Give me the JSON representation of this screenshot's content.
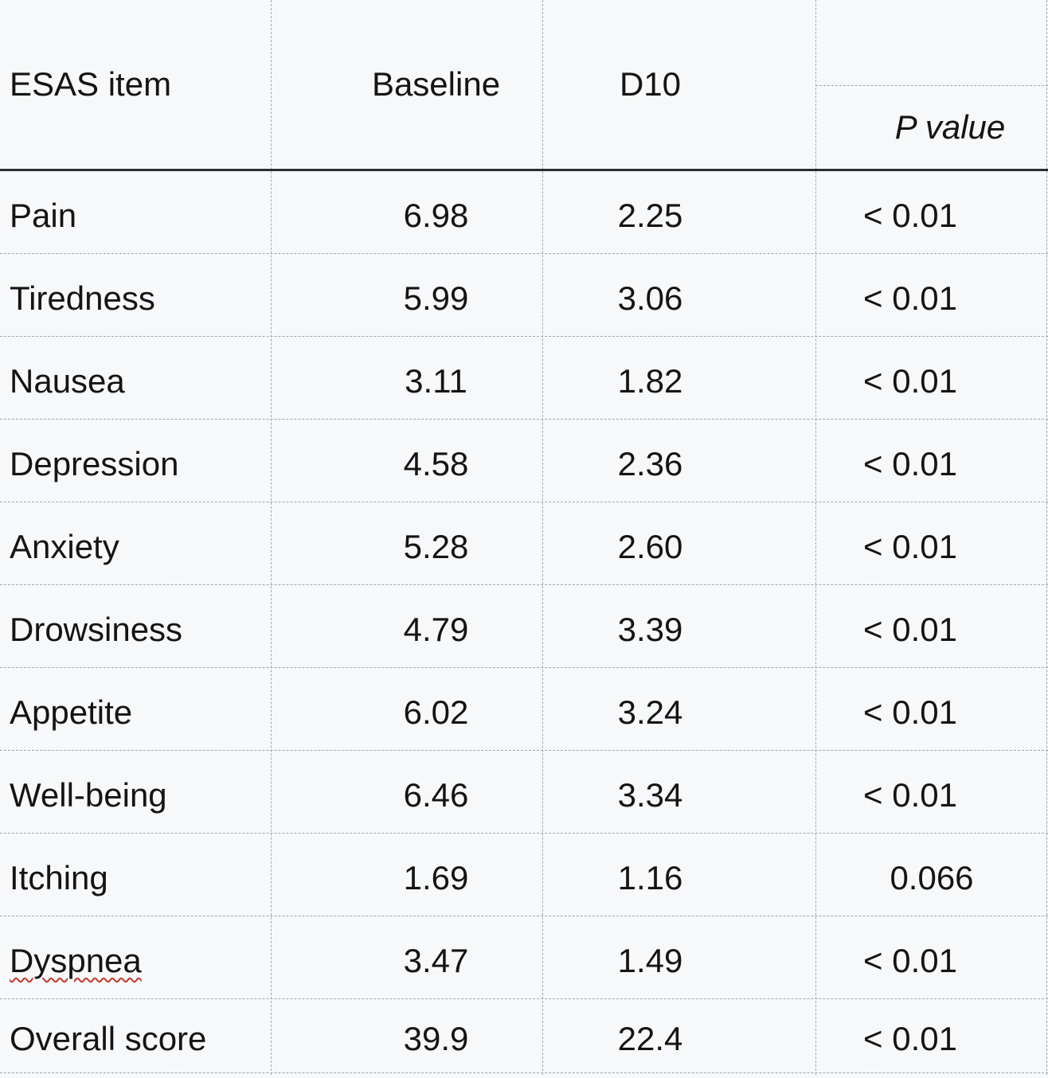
{
  "colors": {
    "background": "#f7f8fa",
    "gridline": "#a2a6ab",
    "header_rule": "#2c2d2f",
    "text": "#141414",
    "spellcheck_squiggle": "#c0392b"
  },
  "table": {
    "columns": [
      "ESAS item",
      "Baseline",
      "D10",
      "P value"
    ],
    "rows": [
      {
        "item": "Pain",
        "baseline": "6.98",
        "d10": "2.25",
        "p": "< 0.01"
      },
      {
        "item": "Tiredness",
        "baseline": "5.99",
        "d10": "3.06",
        "p": "< 0.01"
      },
      {
        "item": "Nausea",
        "baseline": "3.11",
        "d10": "1.82",
        "p": "< 0.01"
      },
      {
        "item": "Depression",
        "baseline": "4.58",
        "d10": "2.36",
        "p": "< 0.01"
      },
      {
        "item": "Anxiety",
        "baseline": "5.28",
        "d10": "2.60",
        "p": "< 0.01"
      },
      {
        "item": "Drowsiness",
        "baseline": "4.79",
        "d10": "3.39",
        "p": "< 0.01"
      },
      {
        "item": "Appetite",
        "baseline": "6.02",
        "d10": "3.24",
        "p": "< 0.01"
      },
      {
        "item": "Well-being",
        "baseline": "6.46",
        "d10": "3.34",
        "p": "< 0.01"
      },
      {
        "item": "Itching",
        "baseline": "1.69",
        "d10": "1.16",
        "p": "0.066"
      },
      {
        "item": "Dyspnea",
        "baseline": "3.47",
        "d10": "1.49",
        "p": "< 0.01",
        "spellcheck_underline": true
      },
      {
        "item": "Overall score",
        "baseline": "39.9",
        "d10": "22.4",
        "p": "< 0.01"
      }
    ]
  },
  "chart_data": {
    "type": "table",
    "title": "",
    "columns": [
      "ESAS item",
      "Baseline",
      "D10",
      "P value"
    ],
    "rows": [
      [
        "Pain",
        "6.98",
        "2.25",
        "< 0.01"
      ],
      [
        "Tiredness",
        "5.99",
        "3.06",
        "< 0.01"
      ],
      [
        "Nausea",
        "3.11",
        "1.82",
        "< 0.01"
      ],
      [
        "Depression",
        "4.58",
        "2.36",
        "< 0.01"
      ],
      [
        "Anxiety",
        "5.28",
        "2.60",
        "< 0.01"
      ],
      [
        "Drowsiness",
        "4.79",
        "3.39",
        "< 0.01"
      ],
      [
        "Appetite",
        "6.02",
        "3.24",
        "< 0.01"
      ],
      [
        "Well-being",
        "6.46",
        "3.34",
        "< 0.01"
      ],
      [
        "Itching",
        "1.69",
        "1.16",
        "0.066"
      ],
      [
        "Dyspnea",
        "3.47",
        "1.49",
        "< 0.01"
      ],
      [
        "Overall score",
        "39.9",
        "22.4",
        "< 0.01"
      ]
    ]
  }
}
